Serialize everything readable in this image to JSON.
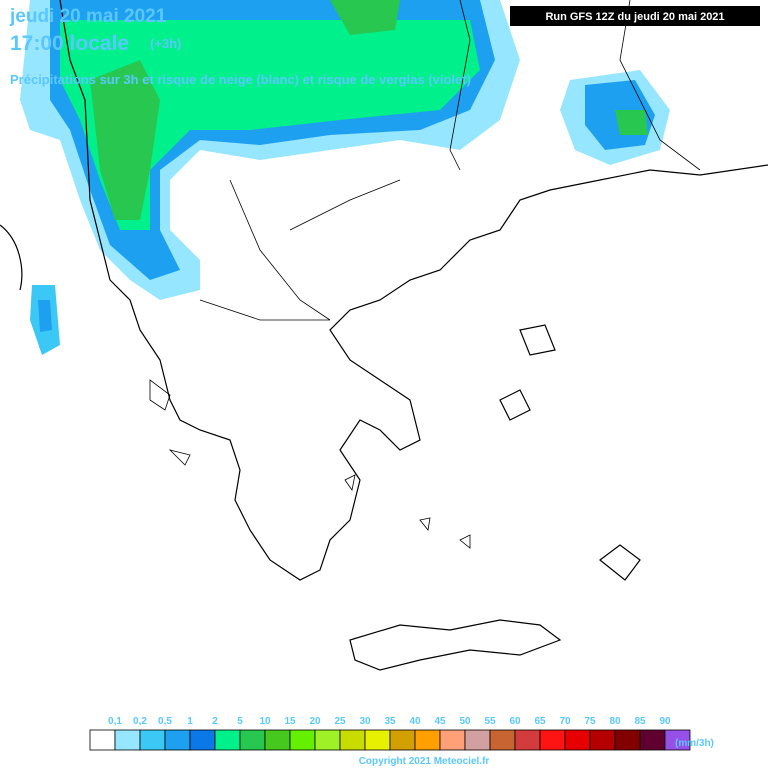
{
  "header": {
    "date": "jeudi 20 mai 2021",
    "time": "17:00 locale",
    "offset": "(+3h)",
    "subtitle": "Précipitations sur 3h et risque de neige (blanc) et risque de verglas (violet)",
    "run": "Run GFS 12Z du jeudi 20 mai 2021"
  },
  "legend": {
    "labels": [
      "0,1",
      "0,2",
      "0,5",
      "1",
      "2",
      "5",
      "10",
      "15",
      "20",
      "25",
      "30",
      "35",
      "40",
      "45",
      "50",
      "55",
      "60",
      "65",
      "70",
      "75",
      "80",
      "85",
      "90"
    ],
    "colors": [
      "#ffffff",
      "#96e6ff",
      "#3cc8f5",
      "#1ea0f0",
      "#0a78e6",
      "#00f08c",
      "#28c850",
      "#46c81e",
      "#64f000",
      "#a0f028",
      "#c8dc00",
      "#e6f000",
      "#d2a000",
      "#ffa000",
      "#ffa078",
      "#d2a0a0",
      "#c86432",
      "#d23c3c",
      "#ff1414",
      "#e60000",
      "#b40000",
      "#820000",
      "#600030"
    ],
    "extra_color": "#9650e6",
    "unit": "(mm/3h)"
  },
  "footer": {
    "copyright": "Copyright 2021 Meteociel.fr"
  }
}
